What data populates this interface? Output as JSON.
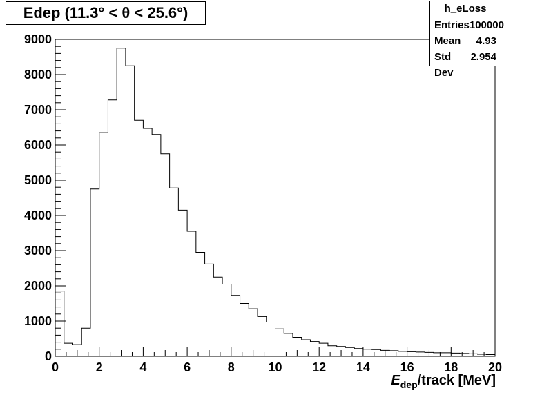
{
  "chart_data": {
    "type": "bar",
    "title": "Edep (11.3° < θ < 25.6°)",
    "xlabel_main": "E",
    "xlabel_sub": "dep",
    "xlabel_rest": "/track [MeV]",
    "xlim": [
      0,
      20
    ],
    "ylim": [
      0,
      9000
    ],
    "xticks": [
      0,
      2,
      4,
      6,
      8,
      10,
      12,
      14,
      16,
      18,
      20
    ],
    "yticks": [
      0,
      1000,
      2000,
      3000,
      4000,
      5000,
      6000,
      7000,
      8000,
      9000
    ],
    "bin_width": 0.4,
    "x_start": 0,
    "values": [
      1850,
      370,
      330,
      800,
      4750,
      6350,
      7280,
      8750,
      8250,
      6700,
      6470,
      6300,
      5750,
      4780,
      4150,
      3550,
      2950,
      2620,
      2250,
      2050,
      1730,
      1500,
      1350,
      1130,
      970,
      780,
      650,
      540,
      470,
      420,
      370,
      300,
      280,
      250,
      220,
      200,
      190,
      170,
      160,
      140,
      130,
      120,
      110,
      100,
      100,
      90,
      80,
      70,
      60,
      50
    ],
    "grid": false,
    "legend": "none"
  },
  "stats": {
    "name": "h_eLoss",
    "rows": [
      {
        "label": "Entries",
        "value": "100000"
      },
      {
        "label": "Mean",
        "value": "4.93"
      },
      {
        "label": "Std Dev",
        "value": "2.954"
      }
    ]
  }
}
